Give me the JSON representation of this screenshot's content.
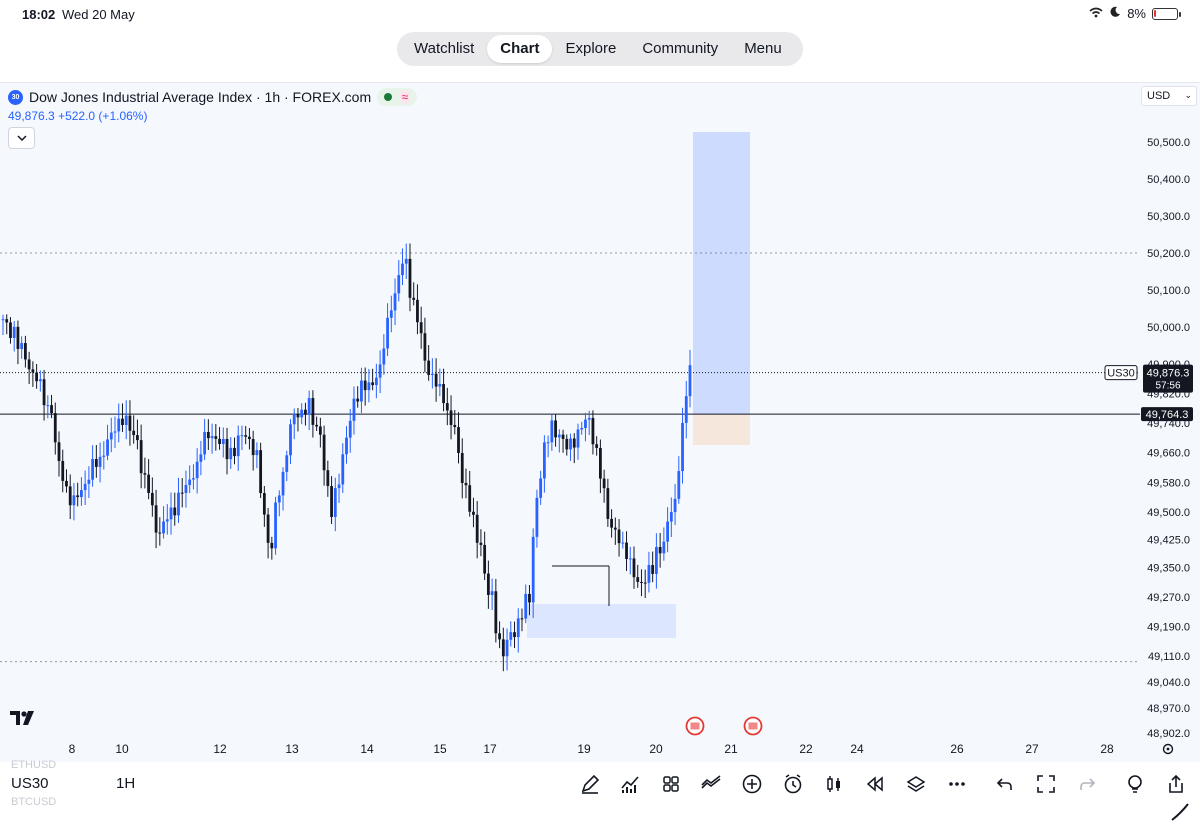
{
  "status_bar": {
    "time": "18:02",
    "date": "Wed 20 May",
    "battery": "8%",
    "battery_level": 0.08
  },
  "nav_tabs": [
    {
      "label": "Watchlist",
      "active": false
    },
    {
      "label": "Chart",
      "active": true
    },
    {
      "label": "Explore",
      "active": false
    },
    {
      "label": "Community",
      "active": false
    },
    {
      "label": "Menu",
      "active": false
    }
  ],
  "legend": {
    "badge": "30",
    "title": "Dow Jones Industrial Average Index · 1h · FOREX.com",
    "price": "49,876.3",
    "change": "+522.0 (+1.06%)"
  },
  "currency": "USD",
  "chart_data": {
    "type": "candlestick",
    "y_range": [
      48902,
      50580
    ],
    "price_axis_ticks": [
      "50,500.0",
      "50,400.0",
      "50,300.0",
      "50,200.0",
      "50,100.0",
      "50,000.0",
      "49,900.0",
      "49,820.0",
      "49,740.0",
      "49,660.0",
      "49,580.0",
      "49,500.0",
      "49,425.0",
      "49,350.0",
      "49,270.0",
      "49,190.0",
      "49,110.0",
      "49,040.0",
      "48,970.0",
      "48,902.0"
    ],
    "price_tick_values": [
      50500,
      50400,
      50300,
      50200,
      50100,
      50000,
      49900,
      49820,
      49740,
      49660,
      49580,
      49500,
      49425,
      49350,
      49270,
      49190,
      49110,
      49040,
      48970,
      48902
    ],
    "time_axis_labels": [
      "8",
      "10",
      "12",
      "13",
      "14",
      "15",
      "17",
      "19",
      "20",
      "21",
      "22",
      "24",
      "26",
      "27",
      "28"
    ],
    "current_price": {
      "symbol": "US30",
      "value": "49,876.3",
      "countdown": "57:56",
      "numeric": 49876.3
    },
    "horizontal_line": {
      "value": "49,764.3",
      "numeric": 49764.3
    },
    "dotted_levels": [
      50200,
      49095
    ],
    "candles_sample": [
      {
        "o": 50020,
        "h": 50100,
        "l": 49960,
        "c": 49990
      },
      {
        "o": 49990,
        "c": 49920
      },
      {
        "o": 49920,
        "c": 49860
      },
      {
        "o": 49860,
        "c": 49780
      },
      {
        "o": 49780,
        "c": 49600
      },
      {
        "o": 49600,
        "c": 49520
      },
      {
        "o": 49520,
        "c": 49580
      },
      {
        "o": 49580,
        "c": 49640
      },
      {
        "o": 49640,
        "c": 49700
      },
      {
        "o": 49700,
        "c": 49760
      },
      {
        "o": 49760,
        "c": 49700
      },
      {
        "o": 49700,
        "c": 49560
      },
      {
        "o": 49560,
        "c": 49440
      },
      {
        "o": 49440,
        "c": 49500
      },
      {
        "o": 49500,
        "c": 49560
      },
      {
        "o": 49560,
        "c": 49620
      },
      {
        "o": 49620,
        "c": 49720
      },
      {
        "o": 49720,
        "c": 49680
      },
      {
        "o": 49680,
        "c": 49660
      },
      {
        "o": 49660,
        "c": 49720
      },
      {
        "o": 49720,
        "c": 49640
      },
      {
        "o": 49640,
        "c": 49400
      },
      {
        "o": 49400,
        "c": 49600
      },
      {
        "o": 49600,
        "c": 49760
      },
      {
        "o": 49760,
        "c": 49780
      },
      {
        "o": 49780,
        "c": 49720
      },
      {
        "o": 49720,
        "c": 49500
      },
      {
        "o": 49500,
        "c": 49640
      },
      {
        "o": 49640,
        "c": 49820
      },
      {
        "o": 49820,
        "c": 49840
      },
      {
        "o": 49840,
        "c": 49880
      },
      {
        "o": 49880,
        "c": 50080
      },
      {
        "o": 50080,
        "c": 50180
      },
      {
        "o": 50180,
        "c": 50020
      },
      {
        "o": 50020,
        "c": 49880
      },
      {
        "o": 49880,
        "c": 49820
      },
      {
        "o": 49820,
        "c": 49720
      },
      {
        "o": 49720,
        "c": 49560
      },
      {
        "o": 49560,
        "c": 49420
      },
      {
        "o": 49420,
        "c": 49260
      },
      {
        "o": 49260,
        "c": 49120
      },
      {
        "o": 49120,
        "c": 49180
      },
      {
        "o": 49180,
        "c": 49260
      },
      {
        "o": 49260,
        "c": 49600
      },
      {
        "o": 49600,
        "c": 49740
      },
      {
        "o": 49740,
        "c": 49680
      },
      {
        "o": 49680,
        "c": 49700
      },
      {
        "o": 49700,
        "c": 49760
      },
      {
        "o": 49760,
        "c": 49600
      },
      {
        "o": 49600,
        "c": 49440
      },
      {
        "o": 49440,
        "c": 49400
      },
      {
        "o": 49400,
        "c": 49300
      },
      {
        "o": 49300,
        "c": 49340
      },
      {
        "o": 49340,
        "c": 49420
      },
      {
        "o": 49420,
        "c": 49520
      },
      {
        "o": 49520,
        "c": 49820
      },
      {
        "o": 49820,
        "c": 49880
      }
    ]
  },
  "bottom": {
    "ghost_top": "ETHUSD",
    "symbol": "US30",
    "ghost_bottom": "BTCUSD",
    "interval": "1H"
  },
  "toolbar_icons": [
    "draw-icon",
    "indicators-icon",
    "layout-icon",
    "compare-icon",
    "add-icon",
    "alert-icon",
    "candles-icon",
    "replay-icon",
    "layers-icon",
    "more-icon",
    "undo-icon",
    "fullscreen-icon",
    "redo-icon",
    "idea-icon",
    "share-icon",
    "pen-icon"
  ]
}
